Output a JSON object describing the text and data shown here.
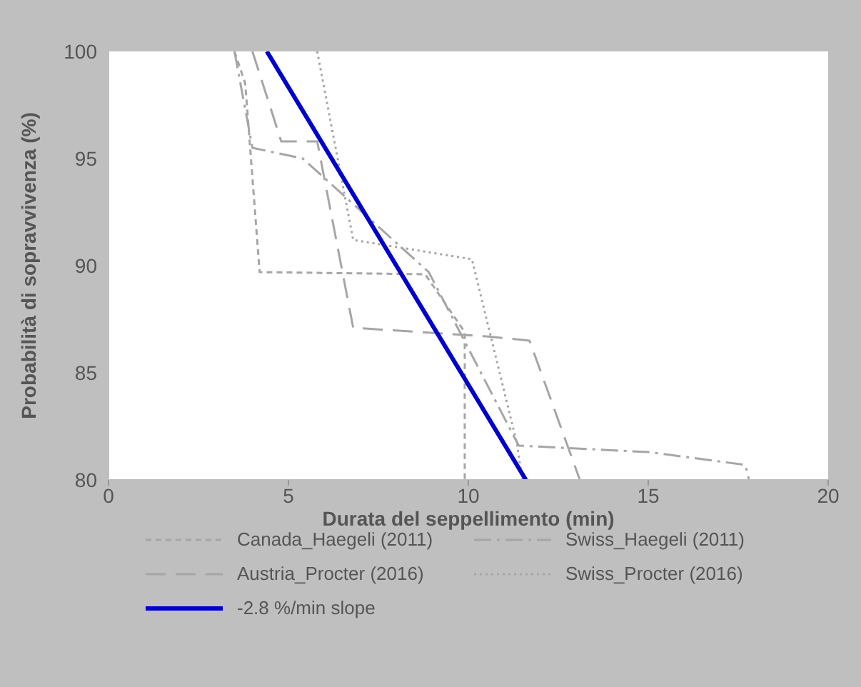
{
  "chart_data": {
    "type": "line",
    "xlabel": "Durata del seppellimento  (min)",
    "ylabel": "Probabilità di sopravvivenza  (%)",
    "xlim": [
      0,
      20
    ],
    "xticks": [
      0,
      5,
      10,
      15,
      20
    ],
    "ylim": [
      80,
      100
    ],
    "yticks": [
      80,
      85,
      90,
      95,
      100
    ],
    "grid": false,
    "legend": "bottom",
    "marker": "none",
    "series": [
      {
        "name": "Canada_Haegeli (2011)",
        "color": "#a6a6a6",
        "line_style": "dashed",
        "x": [
          3.5,
          3.8,
          4.2,
          8.8,
          9.9,
          9.9
        ],
        "values": [
          100,
          98.5,
          89.7,
          89.6,
          86.9,
          80
        ]
      },
      {
        "name": "Swiss_Haegeli (2011)",
        "color": "#a6a6a6",
        "line_style": "dashdot",
        "x": [
          3.5,
          4.0,
          5.4,
          8.9,
          11.4,
          15,
          17.7,
          17.8
        ],
        "values": [
          100,
          95.5,
          95,
          89.7,
          81.6,
          81.3,
          80.7,
          80
        ]
      },
      {
        "name": "Austria_Procter (2016)",
        "color": "#a6a6a6",
        "line_style": "longdash",
        "x": [
          4.0,
          4.8,
          5.8,
          6.8,
          10.5,
          11.7,
          13.1
        ],
        "values": [
          100,
          95.8,
          95.8,
          87.1,
          86.7,
          86.5,
          80
        ]
      },
      {
        "name": "Swiss_Procter (2016)",
        "color": "#a6a6a6",
        "line_style": "dotted",
        "x": [
          5.8,
          6.8,
          10.1,
          11.35,
          11.5
        ],
        "values": [
          100,
          91.2,
          90.3,
          81.7,
          80
        ]
      },
      {
        "name": "-2.8 %/min slope",
        "color": "#0000cc",
        "line_style": "solid",
        "x": [
          4.4,
          11.6
        ],
        "values": [
          100,
          80
        ]
      }
    ]
  }
}
